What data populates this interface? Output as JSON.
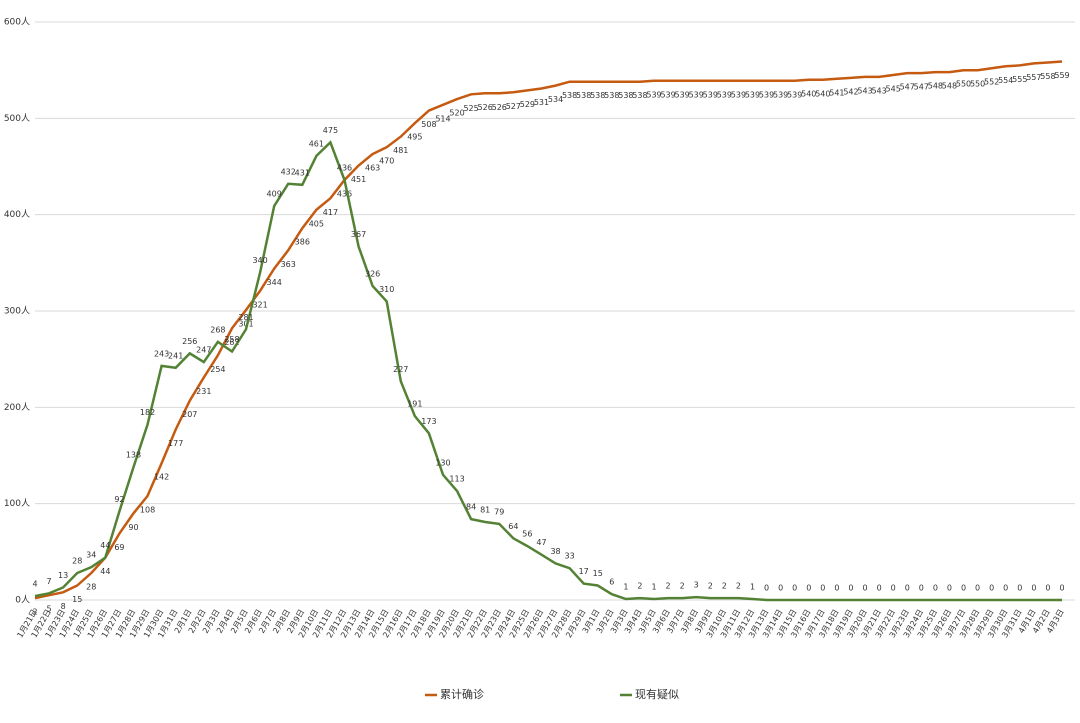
{
  "chart_data": {
    "type": "line",
    "categories": [
      "1月21日",
      "1月22日",
      "1月23日",
      "1月24日",
      "1月25日",
      "1月26日",
      "1月27日",
      "1月28日",
      "1月29日",
      "1月30日",
      "1月31日",
      "2月1日",
      "2月2日",
      "2月3日",
      "2月4日",
      "2月5日",
      "2月6日",
      "2月7日",
      "2月8日",
      "2月9日",
      "2月10日",
      "2月11日",
      "2月12日",
      "2月13日",
      "2月14日",
      "2月15日",
      "2月16日",
      "2月17日",
      "2月18日",
      "2月19日",
      "2月20日",
      "2月21日",
      "2月22日",
      "2月23日",
      "2月24日",
      "2月25日",
      "2月26日",
      "2月27日",
      "2月28日",
      "2月29日",
      "3月1日",
      "3月2日",
      "3月3日",
      "3月4日",
      "3月5日",
      "3月6日",
      "3月7日",
      "3月8日",
      "3月9日",
      "3月10日",
      "3月11日",
      "3月12日",
      "3月13日",
      "3月14日",
      "3月15日",
      "3月16日",
      "3月17日",
      "3月18日",
      "3月19日",
      "3月20日",
      "3月21日",
      "3月22日",
      "3月23日",
      "3月24日",
      "3月25日",
      "3月26日",
      "3月27日",
      "3月28日",
      "3月29日",
      "3月30日",
      "3月31日",
      "4月1日",
      "4月2日",
      "4月3日"
    ],
    "series": [
      {
        "name": "累计确诊",
        "color": "#c55a11",
        "values": [
          2,
          5,
          8,
          15,
          28,
          44,
          69,
          90,
          108,
          142,
          177,
          207,
          231,
          254,
          282,
          301,
          321,
          344,
          363,
          386,
          405,
          417,
          436,
          451,
          463,
          470,
          481,
          495,
          508,
          514,
          520,
          525,
          526,
          526,
          527,
          529,
          531,
          534,
          538,
          538,
          538,
          538,
          538,
          538,
          539,
          539,
          539,
          539,
          539,
          539,
          539,
          539,
          539,
          539,
          539,
          540,
          540,
          541,
          542,
          543,
          543,
          545,
          547,
          547,
          548,
          548,
          550,
          550,
          552,
          554,
          555,
          557,
          558,
          559
        ]
      },
      {
        "name": "现有疑似",
        "color": "#548235",
        "values": [
          4,
          7,
          13,
          28,
          34,
          44,
          92,
          138,
          182,
          243,
          241,
          256,
          247,
          268,
          258,
          281,
          340,
          409,
          432,
          431,
          461,
          475,
          436,
          367,
          326,
          310,
          227,
          191,
          173,
          130,
          113,
          84,
          81,
          79,
          64,
          56,
          47,
          38,
          33,
          17,
          15,
          6,
          1,
          2,
          1,
          2,
          2,
          3,
          2,
          2,
          2,
          1,
          0,
          0,
          0,
          0,
          0,
          0,
          0,
          0,
          0,
          0,
          0,
          0,
          0,
          0,
          0,
          0,
          0,
          0,
          0,
          0,
          0,
          0
        ]
      }
    ],
    "ylim": [
      0,
      600
    ],
    "yticks": [
      {
        "value": 0,
        "label": "0人"
      },
      {
        "value": 100,
        "label": "100人"
      },
      {
        "value": 200,
        "label": "200人"
      },
      {
        "value": 300,
        "label": "300人"
      },
      {
        "value": 400,
        "label": "400人"
      },
      {
        "value": 500,
        "label": "500人"
      },
      {
        "value": 600,
        "label": "600人"
      }
    ],
    "grid": true
  }
}
